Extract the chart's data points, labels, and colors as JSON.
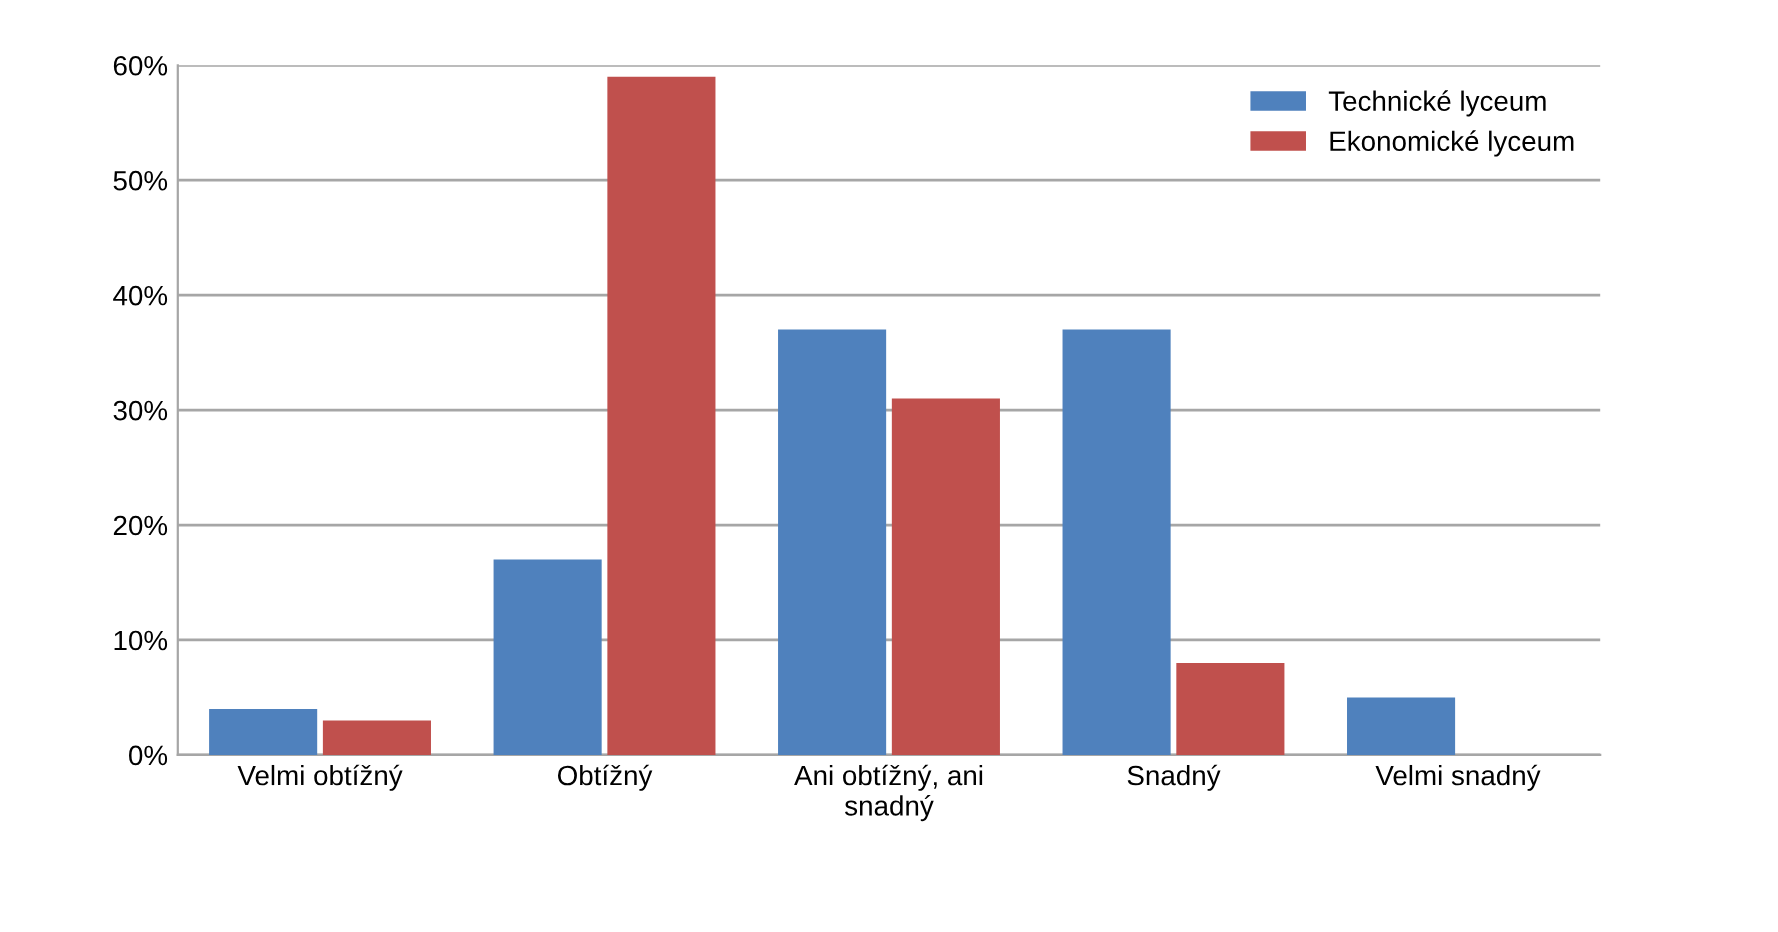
{
  "chart_data": {
    "type": "bar",
    "categories": [
      "Velmi obtížný",
      "Obtížný",
      "Ani obtížný, ani\nsnadný",
      "Snadný",
      "Velmi snadný"
    ],
    "series": [
      {
        "name": "Technické lyceum",
        "color": "#4f81bd",
        "values": [
          4,
          17,
          37,
          37,
          5
        ]
      },
      {
        "name": "Ekonomické lyceum",
        "color": "#c0504d",
        "values": [
          3,
          59,
          31,
          8,
          0
        ]
      }
    ],
    "ylim": [
      0,
      60
    ],
    "yticks": [
      {
        "value": 0,
        "label": "0%"
      },
      {
        "value": 10,
        "label": "10%"
      },
      {
        "value": 20,
        "label": "20%"
      },
      {
        "value": 30,
        "label": "30%"
      },
      {
        "value": 40,
        "label": "40%"
      },
      {
        "value": 50,
        "label": "50%"
      },
      {
        "value": 60,
        "label": "60%"
      }
    ],
    "grid": "y",
    "legend": "top right"
  }
}
